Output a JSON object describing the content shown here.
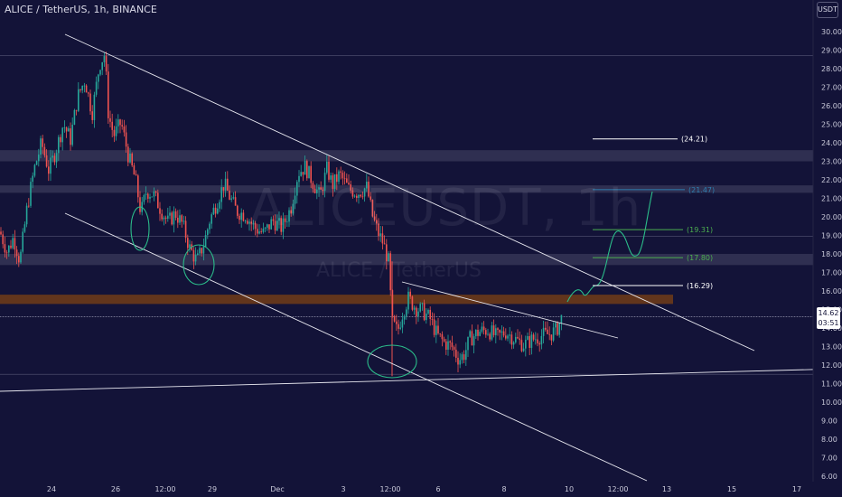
{
  "header": {
    "symbol_title": "ALICE / TetherUS, 1h, BINANCE",
    "currency_badge": "USDT"
  },
  "watermark": {
    "symbol": "ALICEUSDT, 1h",
    "description": "ALICE / TetherUS"
  },
  "last_price": {
    "value": "14.62",
    "countdown": "03:51"
  },
  "colors": {
    "background": "#131338",
    "candle_up": "#26a69a",
    "candle_down": "#ef5350",
    "trendline": "#e8e8f0",
    "zone_gray": "#3a3a5a",
    "zone_orange": "#6b3a1a",
    "target_white": "#ffffff",
    "target_green": "#4caf50",
    "target_blue": "#2f7fb0",
    "projection": "#2bbd8a"
  },
  "chart_data": {
    "type": "candlestick",
    "title": "ALICE / TetherUS, 1h, BINANCE",
    "ylim": [
      5.6,
      31.0
    ],
    "y_ticks": [
      "30.00",
      "29.00",
      "28.00",
      "27.00",
      "26.00",
      "25.00",
      "24.00",
      "23.00",
      "22.00",
      "21.00",
      "20.00",
      "19.00",
      "18.00",
      "17.00",
      "16.00",
      "15.00",
      "14.00",
      "13.00",
      "12.00",
      "11.00",
      "10.00",
      "9.00",
      "8.00",
      "7.00",
      "6.00"
    ],
    "x_ticks": [
      "24",
      "26",
      "12:00",
      "29",
      "Dec",
      "3",
      "12:00",
      "6",
      "8",
      "10",
      "12:00",
      "13",
      "15",
      "17"
    ],
    "ohlc_path": [
      [
        0,
        19.2
      ],
      [
        8,
        18.1
      ],
      [
        15,
        18.9
      ],
      [
        22,
        17.6
      ],
      [
        30,
        20.5
      ],
      [
        38,
        22.6
      ],
      [
        46,
        24.0
      ],
      [
        54,
        22.5
      ],
      [
        62,
        23.6
      ],
      [
        70,
        25.0
      ],
      [
        78,
        24.2
      ],
      [
        86,
        26.5
      ],
      [
        94,
        27.4
      ],
      [
        102,
        25.6
      ],
      [
        110,
        28.2
      ],
      [
        116,
        28.8
      ],
      [
        120,
        25.5
      ],
      [
        126,
        24.4
      ],
      [
        134,
        25.1
      ],
      [
        142,
        23.3
      ],
      [
        150,
        22.0
      ],
      [
        156,
        20.2
      ],
      [
        162,
        21.4
      ],
      [
        170,
        21.2
      ],
      [
        178,
        20.4
      ],
      [
        186,
        19.7
      ],
      [
        194,
        20.2
      ],
      [
        202,
        19.6
      ],
      [
        210,
        18.3
      ],
      [
        218,
        17.6
      ],
      [
        226,
        18.6
      ],
      [
        232,
        19.8
      ],
      [
        240,
        20.8
      ],
      [
        248,
        21.8
      ],
      [
        254,
        21.1
      ],
      [
        262,
        20.3
      ],
      [
        272,
        20.1
      ],
      [
        282,
        19.4
      ],
      [
        292,
        19.1
      ],
      [
        302,
        19.8
      ],
      [
        312,
        19.4
      ],
      [
        322,
        20.5
      ],
      [
        330,
        22.4
      ],
      [
        338,
        22.7
      ],
      [
        346,
        21.9
      ],
      [
        354,
        21.1
      ],
      [
        362,
        22.6
      ],
      [
        368,
        21.7
      ],
      [
        376,
        22.3
      ],
      [
        386,
        21.5
      ],
      [
        396,
        21.3
      ],
      [
        406,
        21.6
      ],
      [
        412,
        20.1
      ],
      [
        418,
        19.2
      ],
      [
        424,
        18.6
      ],
      [
        430,
        17.6
      ],
      [
        434,
        14.3
      ],
      [
        440,
        13.8
      ],
      [
        446,
        14.9
      ],
      [
        452,
        15.6
      ],
      [
        460,
        15.1
      ],
      [
        468,
        14.9
      ],
      [
        476,
        14.5
      ],
      [
        484,
        13.6
      ],
      [
        492,
        13.2
      ],
      [
        500,
        13.0
      ],
      [
        508,
        12.3
      ],
      [
        514,
        12.6
      ],
      [
        520,
        13.4
      ],
      [
        530,
        13.8
      ],
      [
        540,
        13.9
      ],
      [
        550,
        13.5
      ],
      [
        560,
        13.8
      ],
      [
        570,
        13.4
      ],
      [
        580,
        13.1
      ],
      [
        590,
        13.4
      ],
      [
        600,
        13.6
      ],
      [
        610,
        13.7
      ],
      [
        616,
        13.9
      ],
      [
        622,
        14.6
      ]
    ],
    "annotations": [
      {
        "label": "(24.21)",
        "value": 24.21,
        "style": "white"
      },
      {
        "label": "(21.47)",
        "value": 21.47,
        "style": "blue"
      },
      {
        "label": "(19.31)",
        "value": 19.31,
        "style": "green"
      },
      {
        "label": "(17.80)",
        "value": 17.8,
        "style": "green"
      },
      {
        "label": "(16.29)",
        "value": 16.29,
        "style": "white"
      }
    ],
    "zones": [
      {
        "from": 23.0,
        "to": 23.6,
        "color": "gray"
      },
      {
        "from": 21.3,
        "to": 21.7,
        "color": "gray"
      },
      {
        "from": 17.4,
        "to": 18.0,
        "color": "gray"
      },
      {
        "from": 15.3,
        "to": 15.8,
        "color": "orange"
      }
    ],
    "hlines": [
      28.7,
      18.95,
      14.6,
      11.5
    ],
    "grid": false,
    "legend": "none"
  }
}
